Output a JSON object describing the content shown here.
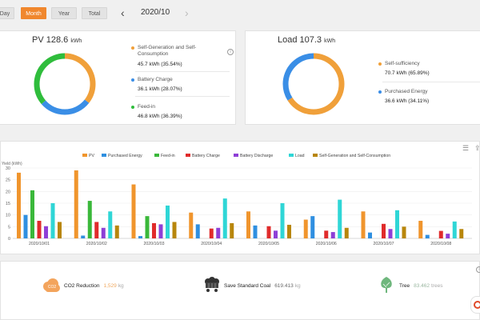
{
  "header": {
    "tabs": [
      {
        "label": "Day",
        "active": false
      },
      {
        "label": "Month",
        "active": true
      },
      {
        "label": "Year",
        "active": false
      },
      {
        "label": "Total",
        "active": false
      }
    ],
    "period": "2020/10",
    "prev_arrow": "‹",
    "next_arrow": "›"
  },
  "pv_card": {
    "title": "PV 128.6",
    "unit": "kWh",
    "legend": [
      {
        "label": "Self-Generation and Self-Consumption",
        "value": "45.7 kWh (35.54%)",
        "color": "#f0a03a"
      },
      {
        "label": "Battery Charge",
        "value": "36.1 kWh (28.07%)",
        "color": "#3a8ee6"
      },
      {
        "label": "Feed-in",
        "value": "46.8 kWh (36.39%)",
        "color": "#2fbd3c"
      }
    ],
    "info": "i"
  },
  "load_card": {
    "title": "Load 107.3",
    "unit": "kWh",
    "legend": [
      {
        "label": "Self-sufficiency",
        "value": "70.7 kWh (65.89%)",
        "color": "#f0a03a"
      },
      {
        "label": "Purchased Energy",
        "value": "36.6 kWh (34.11%)",
        "color": "#3a8ee6"
      }
    ]
  },
  "chart_data": {
    "type": "bar",
    "title": "",
    "ylabel": "Yield (kWh)",
    "ylim": [
      0,
      30
    ],
    "yticks": [
      0,
      5,
      10,
      15,
      20,
      25,
      30
    ],
    "categories": [
      "2020/10/01",
      "2020/10/02",
      "2020/10/03",
      "2020/10/04",
      "2020/10/05",
      "2020/10/06",
      "2020/10/07",
      "2020/10/08"
    ],
    "series": [
      {
        "name": "PV",
        "color": "#f0952d",
        "values": [
          28,
          29,
          23,
          11,
          11.5,
          8,
          11.5,
          7.5
        ]
      },
      {
        "name": "Purchased Energy",
        "color": "#2f8fe0",
        "values": [
          10,
          1.2,
          1,
          6,
          5.5,
          9.5,
          2.5,
          1.5
        ]
      },
      {
        "name": "Feed-in",
        "color": "#3ab83a",
        "values": [
          20.5,
          16,
          9.5,
          0,
          0,
          0,
          0,
          0
        ]
      },
      {
        "name": "Battery Charge",
        "color": "#e02b2b",
        "values": [
          7.5,
          7,
          6.5,
          4.2,
          5.2,
          3.3,
          6.2,
          3.2
        ]
      },
      {
        "name": "Battery Discharge",
        "color": "#8e3fd6",
        "values": [
          5.2,
          4.5,
          6,
          4.5,
          3.3,
          2.7,
          4,
          2
        ]
      },
      {
        "name": "Load",
        "color": "#2fd6d6",
        "values": [
          15,
          11.5,
          14,
          17,
          15,
          16.5,
          12,
          7.2
        ]
      },
      {
        "name": "Self-Generation and Self-Consumption",
        "color": "#b8860b",
        "values": [
          7,
          5.5,
          7,
          6.5,
          5.8,
          4.5,
          5,
          4
        ]
      }
    ],
    "legend_position": "top-center",
    "grid": true
  },
  "bottom": {
    "co2": {
      "name": "CO2 Reduction",
      "value": "1,529",
      "unit": "kg",
      "icon_text": "CO2"
    },
    "coal": {
      "name": "Save Standard Coal",
      "value": "619.413",
      "unit": "kg"
    },
    "tree": {
      "name": "Tree",
      "value": "83.462",
      "unit": "trees"
    }
  }
}
